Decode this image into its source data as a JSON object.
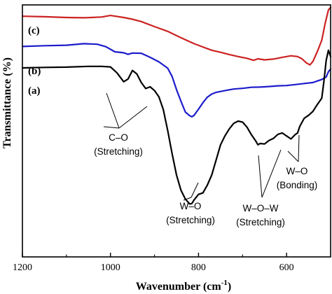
{
  "chart_data": {
    "type": "line",
    "title": "",
    "xlabel": "Wavenumber (cm",
    "xlabel_sup": "-1",
    "xlabel_close": ")",
    "ylabel": "Transmittance (%)",
    "xlim": [
      1200,
      500
    ],
    "x_reversed": true,
    "ylim": [
      0,
      100
    ],
    "y_ticks_shown": false,
    "x_ticks": [
      1200,
      1000,
      800,
      600
    ],
    "series": [
      {
        "name": "(c)",
        "color": "#cc2222",
        "x": [
          1200,
          1150,
          1100,
          1060,
          1020,
          1000,
          970,
          950,
          930,
          900,
          870,
          850,
          830,
          810,
          790,
          770,
          750,
          730,
          710,
          690,
          675,
          665,
          650,
          630,
          610,
          590,
          575,
          565,
          555,
          547,
          540,
          530,
          520,
          512,
          505,
          500
        ],
        "y": [
          95.5,
          95.3,
          95.0,
          94.9,
          95.2,
          95.8,
          95.0,
          94.3,
          93.4,
          91.4,
          89.5,
          87.8,
          86.2,
          84.6,
          83.3,
          82.0,
          81.2,
          80.3,
          79.5,
          78.8,
          78.0,
          78.6,
          78.2,
          78.5,
          79.2,
          79.8,
          79.5,
          78.6,
          77.0,
          76.2,
          77.6,
          81.5,
          86.0,
          93.0,
          98.0,
          99.0
        ]
      },
      {
        "name": "(b)",
        "color": "#1c1ccc",
        "x": [
          1200,
          1150,
          1100,
          1060,
          1030,
          1010,
          990,
          970,
          960,
          950,
          930,
          910,
          890,
          870,
          860,
          850,
          840,
          830,
          820,
          815,
          810,
          800,
          790,
          780,
          770,
          760,
          740,
          720,
          700,
          680,
          660,
          640,
          620,
          600,
          580,
          560,
          540,
          530,
          520,
          510,
          505,
          500
        ],
        "y": [
          83.5,
          83.8,
          84.0,
          84.6,
          84.4,
          83.4,
          81.4,
          81.0,
          80.4,
          80.9,
          80.8,
          79.2,
          77.4,
          74.9,
          71.6,
          66.4,
          61.8,
          57.5,
          56.0,
          55.6,
          56.2,
          58.6,
          61.2,
          63.4,
          64.6,
          65.3,
          66.0,
          66.6,
          66.9,
          67.3,
          67.4,
          67.6,
          67.9,
          68.0,
          68.4,
          68.8,
          69.2,
          69.8,
          70.4,
          71.4,
          73.5,
          74.5
        ]
      },
      {
        "name": "(a)",
        "color": "#000000",
        "x": [
          1200,
          1150,
          1100,
          1050,
          1020,
          1000,
          985,
          970,
          960,
          950,
          940,
          930,
          920,
          910,
          900,
          890,
          880,
          870,
          860,
          850,
          840,
          830,
          825,
          820,
          815,
          810,
          800,
          790,
          780,
          770,
          760,
          750,
          740,
          730,
          720,
          710,
          700,
          690,
          680,
          670,
          665,
          660,
          650,
          640,
          630,
          620,
          610,
          600,
          590,
          580,
          575,
          570,
          560,
          550,
          540,
          530,
          520,
          515,
          510,
          505,
          500
        ],
        "y": [
          75.0,
          75.2,
          75.3,
          75.6,
          75.6,
          75.4,
          73.0,
          69.5,
          70.6,
          74.0,
          72.6,
          69.2,
          66.8,
          67.5,
          66.0,
          63.5,
          58.5,
          50.2,
          41.0,
          32.5,
          26.5,
          23.0,
          22.0,
          21.0,
          21.2,
          22.6,
          24.8,
          25.4,
          28.5,
          32.5,
          38.5,
          44.5,
          48.0,
          50.8,
          53.0,
          53.9,
          53.5,
          51.5,
          48.5,
          46.0,
          44.5,
          45.0,
          44.8,
          46.2,
          47.0,
          48.6,
          49.2,
          48.0,
          46.8,
          48.6,
          49.2,
          51.8,
          55.0,
          56.2,
          57.8,
          60.5,
          63.0,
          70.0,
          78.0,
          82.0,
          79.5
        ]
      }
    ],
    "annotations": [
      {
        "id": "co",
        "lines": [
          "C–O",
          "(Stretching)"
        ]
      },
      {
        "id": "wo-stretch",
        "lines": [
          "W–O",
          "(Stretching)"
        ]
      },
      {
        "id": "wow",
        "lines": [
          "W–O–W",
          "(Stretching)"
        ]
      },
      {
        "id": "wo-bond",
        "lines": [
          "W–O",
          "(Bonding)"
        ]
      }
    ]
  }
}
